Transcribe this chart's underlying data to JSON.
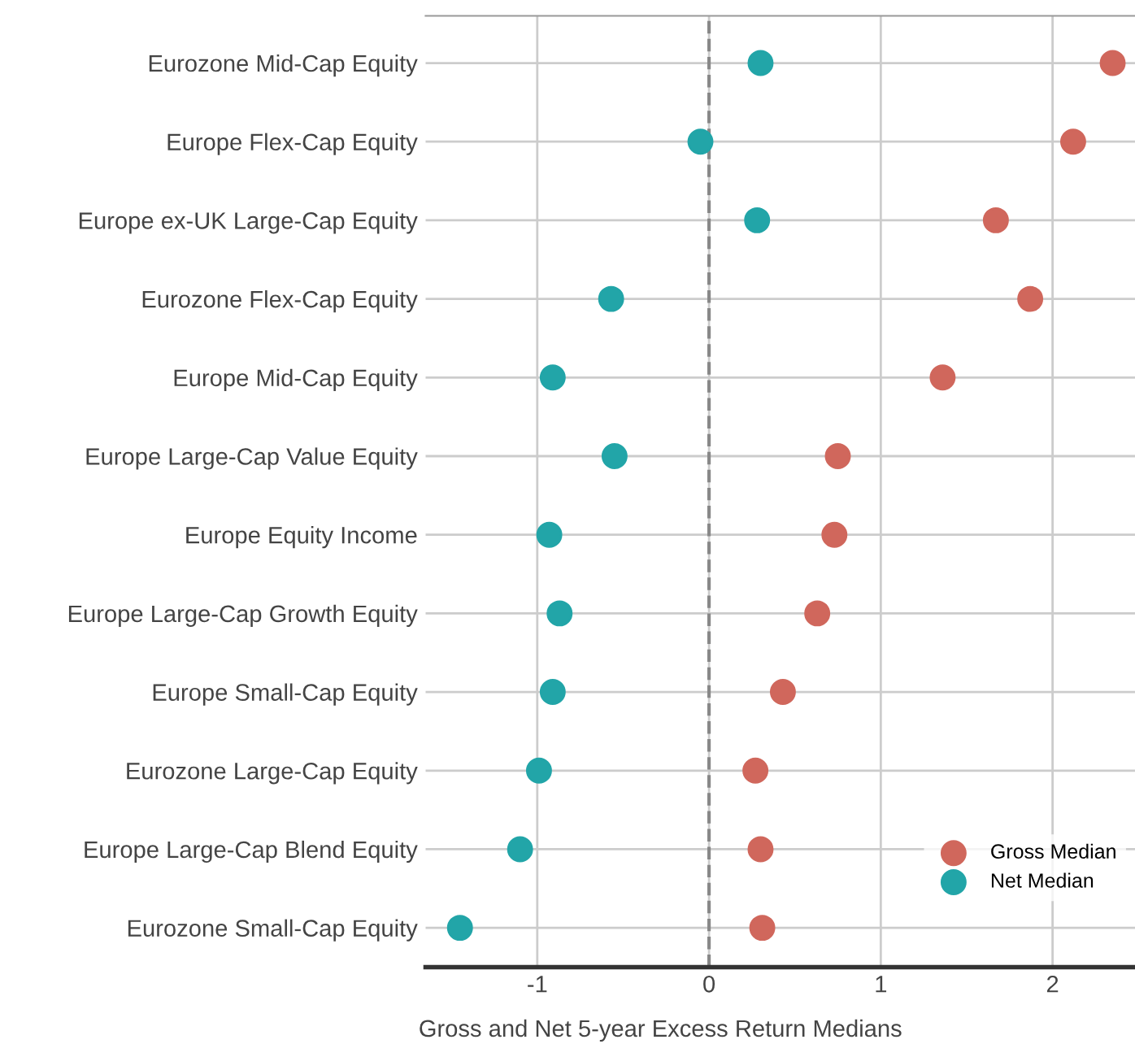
{
  "chart_data": {
    "type": "scatter",
    "orientation": "horizontal",
    "xlabel": "Gross and Net 5-year Excess Return Medians",
    "categories": [
      "Eurozone Mid-Cap Equity",
      "Europe Flex-Cap Equity",
      "Europe ex-UK Large-Cap Equity",
      "Eurozone Flex-Cap Equity",
      "Europe Mid-Cap Equity",
      "Europe Large-Cap Value Equity",
      "Europe Equity Income",
      "Europe Large-Cap Growth Equity",
      "Europe Small-Cap Equity",
      "Eurozone Large-Cap Equity",
      "Europe Large-Cap Blend Equity",
      "Eurozone Small-Cap Equity"
    ],
    "series": [
      {
        "name": "Gross Median",
        "color": "#d0675c",
        "values": [
          2.35,
          2.12,
          1.67,
          1.87,
          1.36,
          0.75,
          0.73,
          0.63,
          0.43,
          0.27,
          0.3,
          0.31
        ]
      },
      {
        "name": "Net Median",
        "color": "#22a5a8",
        "values": [
          0.3,
          -0.05,
          0.28,
          -0.57,
          -0.91,
          -0.55,
          -0.93,
          -0.87,
          -0.91,
          -0.99,
          -1.1,
          -1.45
        ]
      }
    ],
    "xlim": [
      -1.65,
      2.48
    ],
    "xticks": [
      -1,
      0,
      1,
      2
    ],
    "ref_lines": [
      {
        "axis": "x",
        "value": 0,
        "color": "#888888",
        "line_style": "dashed"
      }
    ],
    "grid": true,
    "legend": "bottom right",
    "marker": "circle"
  }
}
